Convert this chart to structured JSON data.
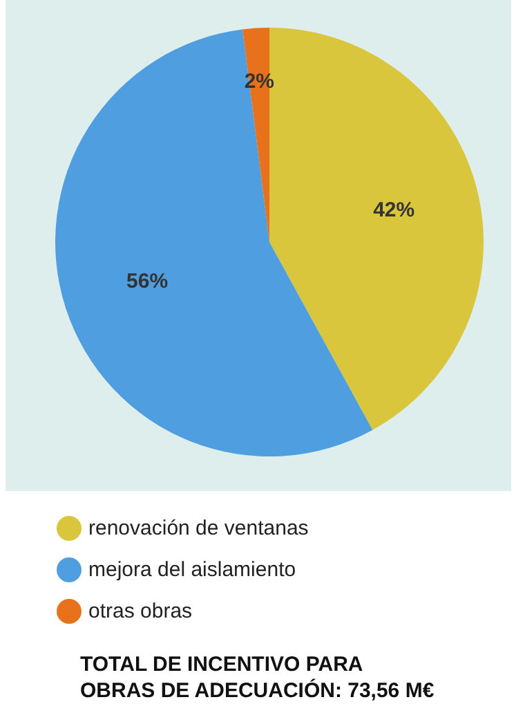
{
  "chart_data": {
    "type": "pie",
    "categories": [
      "renovación de ventanas",
      "mejora del aislamiento",
      "otras obras"
    ],
    "values": [
      42,
      56,
      2
    ],
    "colors": [
      "#d9c63c",
      "#4f9ee0",
      "#e8721c"
    ],
    "value_labels": [
      "42%",
      "56%",
      "2%"
    ],
    "legend": "bottom",
    "annotations": [
      "TOTAL DE INCENTIVO PARA\nOBRAS DE ADECUACIÓN: 73,56 M€"
    ]
  }
}
